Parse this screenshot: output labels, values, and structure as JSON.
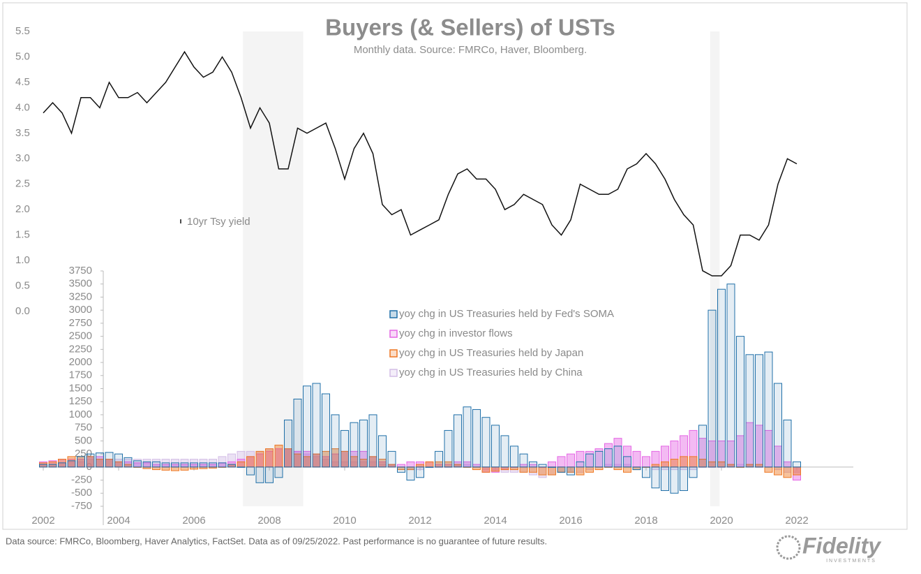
{
  "title": "Buyers (& Sellers) of USTs",
  "subtitle": "Monthly data.  Source: FMRCo, Haver, Bloomberg.",
  "footnote": "Data source: FMRCo, Bloomberg, Haver Analytics, FactSet. Data as of 09/25/2022. Past performance is no guarantee of future results.",
  "logo": {
    "name": "Fidelity",
    "tagline": "INVESTMENTS"
  },
  "shaded_x": [
    [
      2007.3,
      2008.9
    ],
    [
      2019.7,
      2019.95
    ]
  ],
  "chart_data": [
    {
      "type": "line",
      "x": [
        2002,
        2002.25,
        2002.5,
        2002.75,
        2003,
        2003.25,
        2003.5,
        2003.75,
        2004,
        2004.25,
        2004.5,
        2004.75,
        2005,
        2005.25,
        2005.5,
        2005.75,
        2006,
        2006.25,
        2006.5,
        2006.75,
        2007,
        2007.25,
        2007.5,
        2007.75,
        2008,
        2008.25,
        2008.5,
        2008.75,
        2009,
        2009.25,
        2009.5,
        2009.75,
        2010,
        2010.25,
        2010.5,
        2010.75,
        2011,
        2011.25,
        2011.5,
        2011.75,
        2012,
        2012.25,
        2012.5,
        2012.75,
        2013,
        2013.25,
        2013.5,
        2013.75,
        2014,
        2014.25,
        2014.5,
        2014.75,
        2015,
        2015.25,
        2015.5,
        2015.75,
        2016,
        2016.25,
        2016.5,
        2016.75,
        2017,
        2017.25,
        2017.5,
        2017.75,
        2018,
        2018.25,
        2018.5,
        2018.75,
        2019,
        2019.25,
        2019.5,
        2019.75,
        2020,
        2020.25,
        2020.5,
        2020.75,
        2021,
        2021.25,
        2021.5,
        2021.75,
        2022
      ],
      "xlim": [
        2002,
        2023.5
      ],
      "ylim": [
        0,
        5.5
      ],
      "yticks": [
        {
          "value": 0,
          "label": "0.0"
        },
        0.5,
        {
          "value": 1,
          "label": "1.0"
        },
        1.5,
        {
          "value": 2,
          "label": "2.0"
        },
        2.5,
        {
          "value": 3,
          "label": "3.0"
        },
        3.5,
        {
          "value": 4,
          "label": "4.0"
        },
        4.5,
        {
          "value": 5,
          "label": "5.0"
        },
        5.5
      ],
      "series": [
        {
          "name": "10yr Tsy yield",
          "color": "#111111",
          "values": [
            3.9,
            4.1,
            3.9,
            3.5,
            4.2,
            4.2,
            4.0,
            4.5,
            4.2,
            4.2,
            4.3,
            4.1,
            4.3,
            4.5,
            4.8,
            5.1,
            4.8,
            4.6,
            4.7,
            5.0,
            4.7,
            4.2,
            3.6,
            4.0,
            3.7,
            2.8,
            2.8,
            3.6,
            3.5,
            3.6,
            3.7,
            3.2,
            2.6,
            3.2,
            3.5,
            3.1,
            2.1,
            1.9,
            2.0,
            1.5,
            1.6,
            1.7,
            1.8,
            2.3,
            2.7,
            2.8,
            2.6,
            2.6,
            2.4,
            2.0,
            2.1,
            2.3,
            2.2,
            2.1,
            1.7,
            1.5,
            1.8,
            2.5,
            2.4,
            2.3,
            2.3,
            2.4,
            2.8,
            2.9,
            3.1,
            2.9,
            2.6,
            2.2,
            1.9,
            1.7,
            0.8,
            0.7,
            0.7,
            0.9,
            1.5,
            1.5,
            1.4,
            1.7,
            2.5,
            3.0,
            2.9
          ]
        }
      ]
    },
    {
      "type": "bar",
      "x": [
        2002,
        2002.25,
        2002.5,
        2002.75,
        2003,
        2003.25,
        2003.5,
        2003.75,
        2004,
        2004.25,
        2004.5,
        2004.75,
        2005,
        2005.25,
        2005.5,
        2005.75,
        2006,
        2006.25,
        2006.5,
        2006.75,
        2007,
        2007.25,
        2007.5,
        2007.75,
        2008,
        2008.25,
        2008.5,
        2008.75,
        2009,
        2009.25,
        2009.5,
        2009.75,
        2010,
        2010.25,
        2010.5,
        2010.75,
        2011,
        2011.25,
        2011.5,
        2011.75,
        2012,
        2012.25,
        2012.5,
        2012.75,
        2013,
        2013.25,
        2013.5,
        2013.75,
        2014,
        2014.25,
        2014.5,
        2014.75,
        2015,
        2015.25,
        2015.5,
        2015.75,
        2016,
        2016.25,
        2016.5,
        2016.75,
        2017,
        2017.25,
        2017.5,
        2017.75,
        2018,
        2018.25,
        2018.5,
        2018.75,
        2019,
        2019.25,
        2019.5,
        2019.75,
        2020,
        2020.25,
        2020.5,
        2020.75,
        2021,
        2021.25,
        2021.5,
        2021.75,
        2022
      ],
      "xlim": [
        2002,
        2023.5
      ],
      "xticks": [
        2002,
        2004,
        2006,
        2008,
        2010,
        2012,
        2014,
        2016,
        2018,
        2020,
        2022
      ],
      "ylim": [
        -750,
        3750
      ],
      "yticks": [
        -750,
        -500,
        -250,
        0,
        250,
        500,
        750,
        1000,
        1250,
        1500,
        1750,
        2000,
        2250,
        2500,
        2750,
        3000,
        3250,
        3500,
        3750
      ],
      "series": [
        {
          "name": "yoy chg in US Treasuries held by Fed's SOMA",
          "color": "#1f6fa8",
          "values": [
            50,
            50,
            80,
            120,
            200,
            250,
            270,
            280,
            250,
            180,
            120,
            100,
            100,
            80,
            80,
            80,
            80,
            80,
            80,
            80,
            50,
            0,
            -150,
            -300,
            -300,
            -200,
            900,
            1300,
            1550,
            1600,
            1400,
            1000,
            700,
            850,
            900,
            1000,
            600,
            300,
            -100,
            -250,
            -200,
            0,
            300,
            700,
            1000,
            1150,
            1100,
            950,
            800,
            600,
            400,
            250,
            100,
            50,
            0,
            -100,
            -150,
            100,
            250,
            300,
            350,
            400,
            200,
            -50,
            -200,
            -400,
            -450,
            -500,
            -450,
            -200,
            800,
            3000,
            3400,
            3500,
            2500,
            2150,
            2150,
            2200,
            1600,
            900,
            100
          ]
        },
        {
          "name": "yoy chg in investor flows",
          "color": "#e466e4",
          "values": [
            100,
            120,
            150,
            150,
            150,
            200,
            200,
            150,
            100,
            100,
            80,
            80,
            50,
            50,
            50,
            50,
            50,
            50,
            50,
            80,
            100,
            150,
            200,
            250,
            300,
            350,
            350,
            300,
            300,
            250,
            200,
            250,
            300,
            300,
            300,
            200,
            100,
            50,
            50,
            100,
            100,
            100,
            50,
            50,
            100,
            100,
            50,
            -100,
            -100,
            -50,
            0,
            50,
            50,
            0,
            100,
            200,
            250,
            300,
            300,
            350,
            450,
            550,
            400,
            300,
            200,
            300,
            400,
            500,
            600,
            700,
            550,
            500,
            500,
            500,
            600,
            850,
            800,
            700,
            400,
            100,
            -250
          ]
        },
        {
          "name": "yoy chg in US Treasuries held by Japan",
          "color": "#ee7722",
          "values": [
            80,
            100,
            150,
            200,
            200,
            200,
            150,
            150,
            100,
            50,
            0,
            -30,
            -50,
            -60,
            -70,
            -60,
            -40,
            -30,
            -20,
            0,
            50,
            100,
            200,
            300,
            350,
            420,
            350,
            250,
            200,
            250,
            300,
            350,
            300,
            200,
            150,
            200,
            150,
            50,
            -50,
            -50,
            50,
            100,
            100,
            100,
            50,
            0,
            -50,
            -100,
            -80,
            -50,
            -50,
            -100,
            -100,
            -150,
            -150,
            -100,
            -100,
            -150,
            -100,
            -50,
            0,
            -50,
            -100,
            -50,
            0,
            50,
            100,
            150,
            200,
            200,
            150,
            100,
            100,
            50,
            0,
            50,
            50,
            -100,
            -150,
            -200,
            -150
          ]
        },
        {
          "name": "yoy chg in US Treasuries held by China",
          "color": "#d3bde6",
          "values": [
            50,
            50,
            80,
            100,
            100,
            150,
            150,
            150,
            150,
            150,
            150,
            150,
            150,
            150,
            150,
            150,
            150,
            150,
            150,
            200,
            250,
            300,
            300,
            300,
            350,
            350,
            350,
            300,
            250,
            200,
            150,
            100,
            100,
            100,
            100,
            100,
            50,
            50,
            0,
            -50,
            -50,
            0,
            0,
            0,
            50,
            50,
            0,
            -50,
            -50,
            -100,
            -100,
            -100,
            -150,
            -200,
            -150,
            -100,
            -100,
            -100,
            -50,
            0,
            50,
            50,
            50,
            0,
            0,
            -50,
            -50,
            -50,
            -50,
            -50,
            0,
            0,
            0,
            50,
            50,
            50,
            0,
            0,
            -50,
            -100,
            -100
          ]
        }
      ]
    }
  ]
}
